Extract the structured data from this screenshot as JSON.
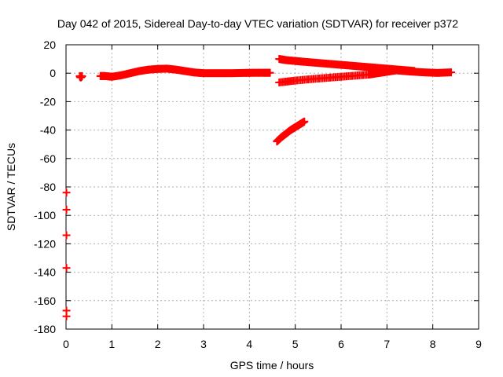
{
  "chart_data": {
    "type": "scatter",
    "title": "Day 042 of 2015, Sidereal Day-to-day VTEC variation (SDTVAR) for receiver p372",
    "xlabel": "GPS time / hours",
    "ylabel": "SDTVAR / TECUs",
    "xlim": [
      0,
      9
    ],
    "ylim": [
      -180,
      20
    ],
    "xticks": [
      0,
      1,
      2,
      3,
      4,
      5,
      6,
      7,
      8,
      9
    ],
    "yticks": [
      20,
      0,
      -20,
      -40,
      -60,
      -80,
      -100,
      -120,
      -140,
      -160,
      -180
    ],
    "grid": true,
    "marker_color": "#ff0000",
    "series": [
      {
        "x": [
          0.3,
          0.32,
          0.35
        ],
        "y": [
          -2,
          -3,
          -2
        ]
      },
      {
        "x": [
          0.75,
          0.85,
          1.0,
          1.2,
          1.4,
          1.6,
          1.8,
          2.0,
          2.2,
          2.4,
          2.6,
          2.8,
          3.0,
          3.3,
          3.6,
          3.9,
          4.1,
          4.3,
          4.45
        ],
        "y": [
          -2,
          -2,
          -2.5,
          -1.5,
          0,
          1.5,
          2.5,
          3,
          3.2,
          2.5,
          1.5,
          0.5,
          0,
          0,
          0,
          0.2,
          0.3,
          0.3,
          0.3
        ]
      },
      {
        "x": [
          4.65,
          4.8,
          5.0,
          5.2,
          5.5,
          5.8,
          6.1,
          6.4,
          6.7,
          7.0,
          7.3,
          7.6
        ],
        "y": [
          10,
          9.2,
          8.6,
          8.0,
          7.2,
          6.4,
          5.6,
          4.8,
          4.0,
          3.2,
          2.4,
          1.6
        ]
      },
      {
        "x": [
          4.65,
          5.0,
          5.4,
          5.8,
          6.2,
          6.6,
          6.8,
          7.0,
          7.2,
          7.5,
          7.8,
          8.1,
          8.4
        ],
        "y": [
          -6.5,
          -5.2,
          -4,
          -3,
          -2,
          -1,
          0,
          1,
          2,
          1.2,
          0.6,
          0.2,
          0.6
        ]
      },
      {
        "x": [
          4.6,
          4.7,
          4.8,
          4.9,
          5.0,
          5.1,
          5.2
        ],
        "y": [
          -48,
          -45,
          -42.5,
          -40,
          -38,
          -36,
          -34
        ]
      },
      {
        "x": [
          0.01,
          0.01,
          0.01,
          0.01,
          0.01,
          0.01
        ],
        "y": [
          -84,
          -96,
          -114,
          -137,
          -167,
          -171
        ]
      }
    ]
  }
}
